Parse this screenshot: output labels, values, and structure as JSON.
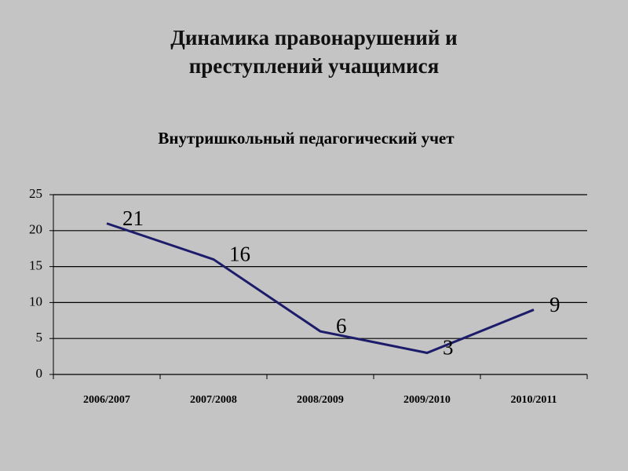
{
  "chart_data": {
    "type": "line",
    "title": "Динамика правонарушений и преступлений учащимися",
    "subtitle": "Внутришкольный педагогический учет",
    "categories": [
      "2006/2007",
      "2007/2008",
      "2008/2009",
      "2009/2010",
      "2010/2011"
    ],
    "series": [
      {
        "color": "#1c1c6b",
        "values": [
          21,
          16,
          6,
          3,
          9
        ]
      }
    ],
    "ylim": [
      0,
      25
    ],
    "yticks": [
      0,
      5,
      10,
      15,
      20,
      25
    ],
    "grid": true
  }
}
